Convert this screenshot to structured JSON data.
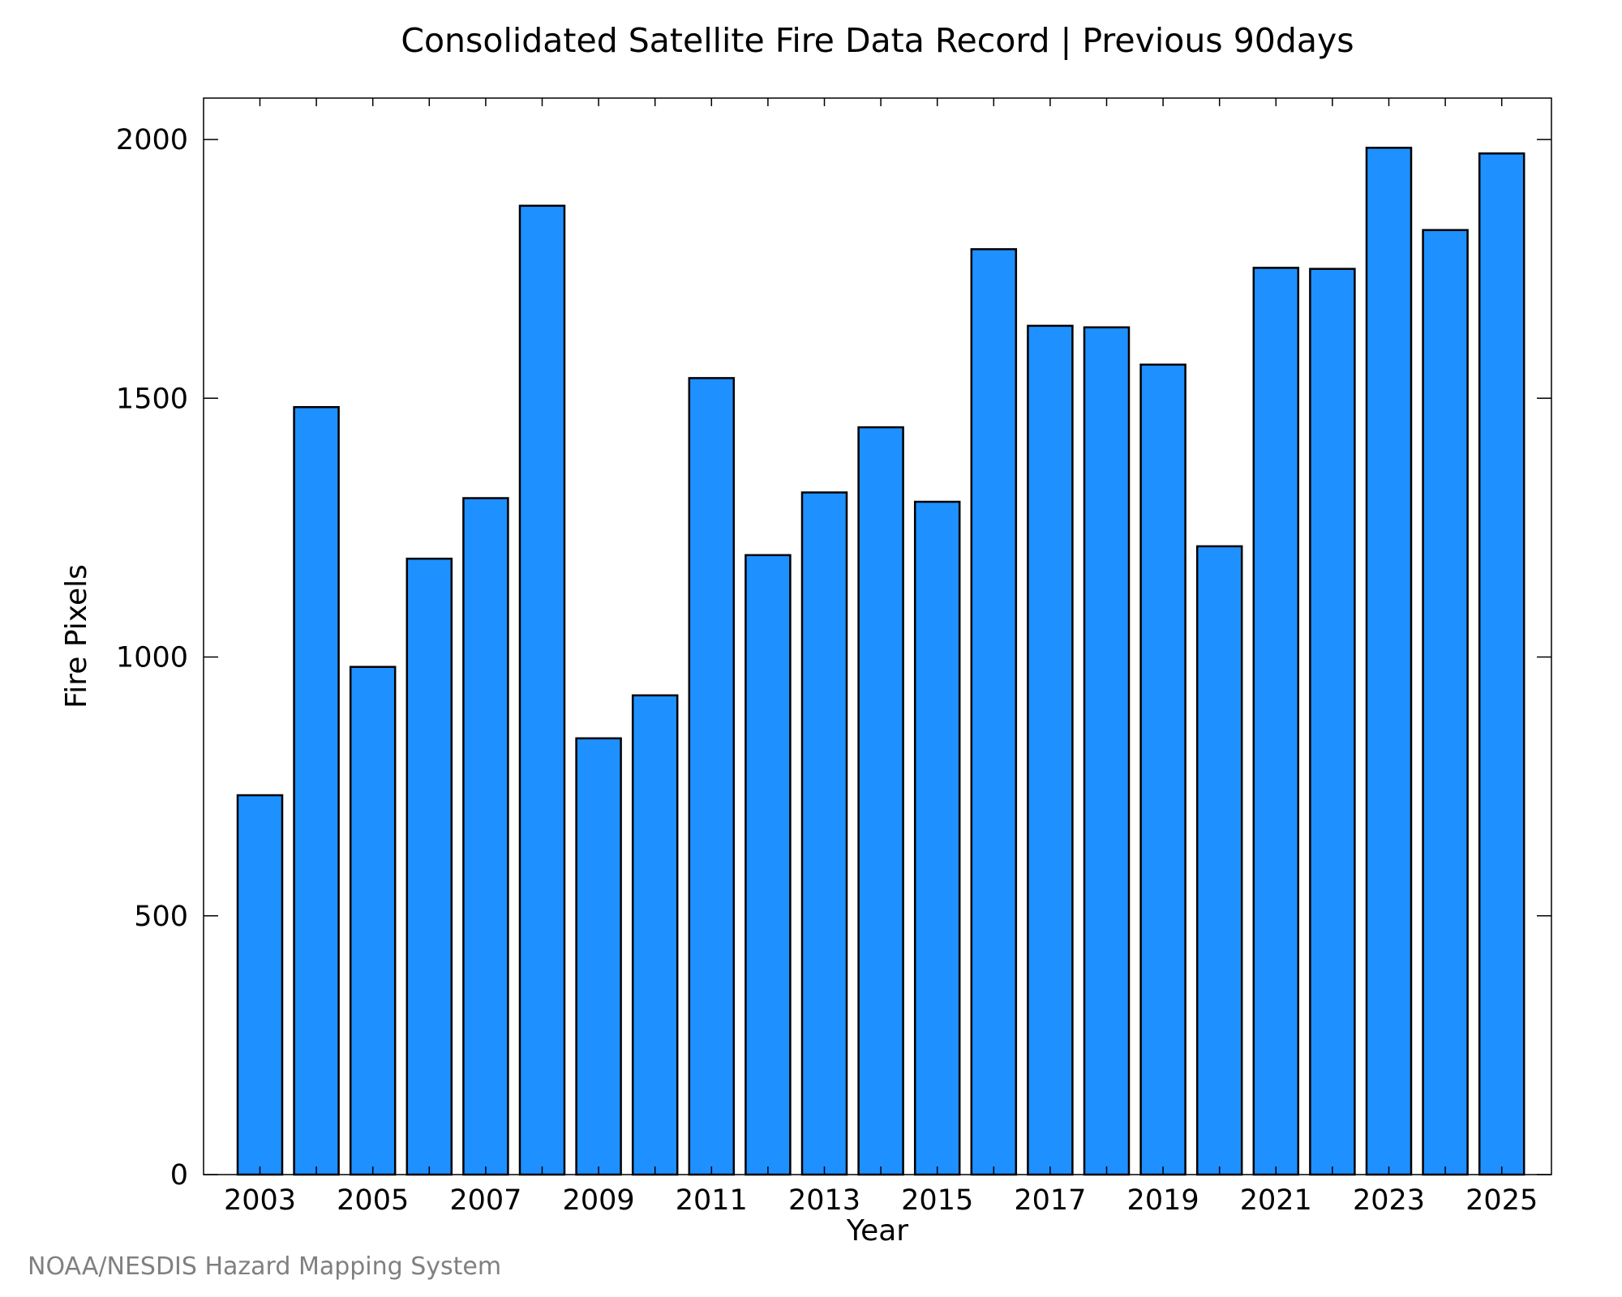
{
  "chart_data": {
    "type": "bar",
    "title": "Consolidated Satellite Fire Data Record | Previous 90days",
    "xlabel": "Year",
    "ylabel": "Fire Pixels",
    "categories": [
      "2003",
      "2004",
      "2005",
      "2006",
      "2007",
      "2008",
      "2009",
      "2010",
      "2011",
      "2012",
      "2013",
      "2014",
      "2015",
      "2016",
      "2017",
      "2018",
      "2019",
      "2020",
      "2021",
      "2022",
      "2023",
      "2024",
      "2025"
    ],
    "x_tick_labels": [
      "2003",
      "2005",
      "2007",
      "2009",
      "2011",
      "2013",
      "2015",
      "2017",
      "2019",
      "2021",
      "2023",
      "2025"
    ],
    "values": [
      733,
      1483,
      981,
      1190,
      1307,
      1872,
      843,
      926,
      1539,
      1197,
      1318,
      1444,
      1300,
      1788,
      1640,
      1637,
      1565,
      1214,
      1752,
      1750,
      1984,
      1825,
      1973
    ],
    "ylim": [
      0,
      2080
    ],
    "yticks": [
      0,
      500,
      1000,
      1500,
      2000
    ],
    "bar_color": "#1e90ff",
    "grid": false,
    "legend": "none"
  },
  "footer": {
    "credit": "NOAA/NESDIS Hazard Mapping System"
  }
}
